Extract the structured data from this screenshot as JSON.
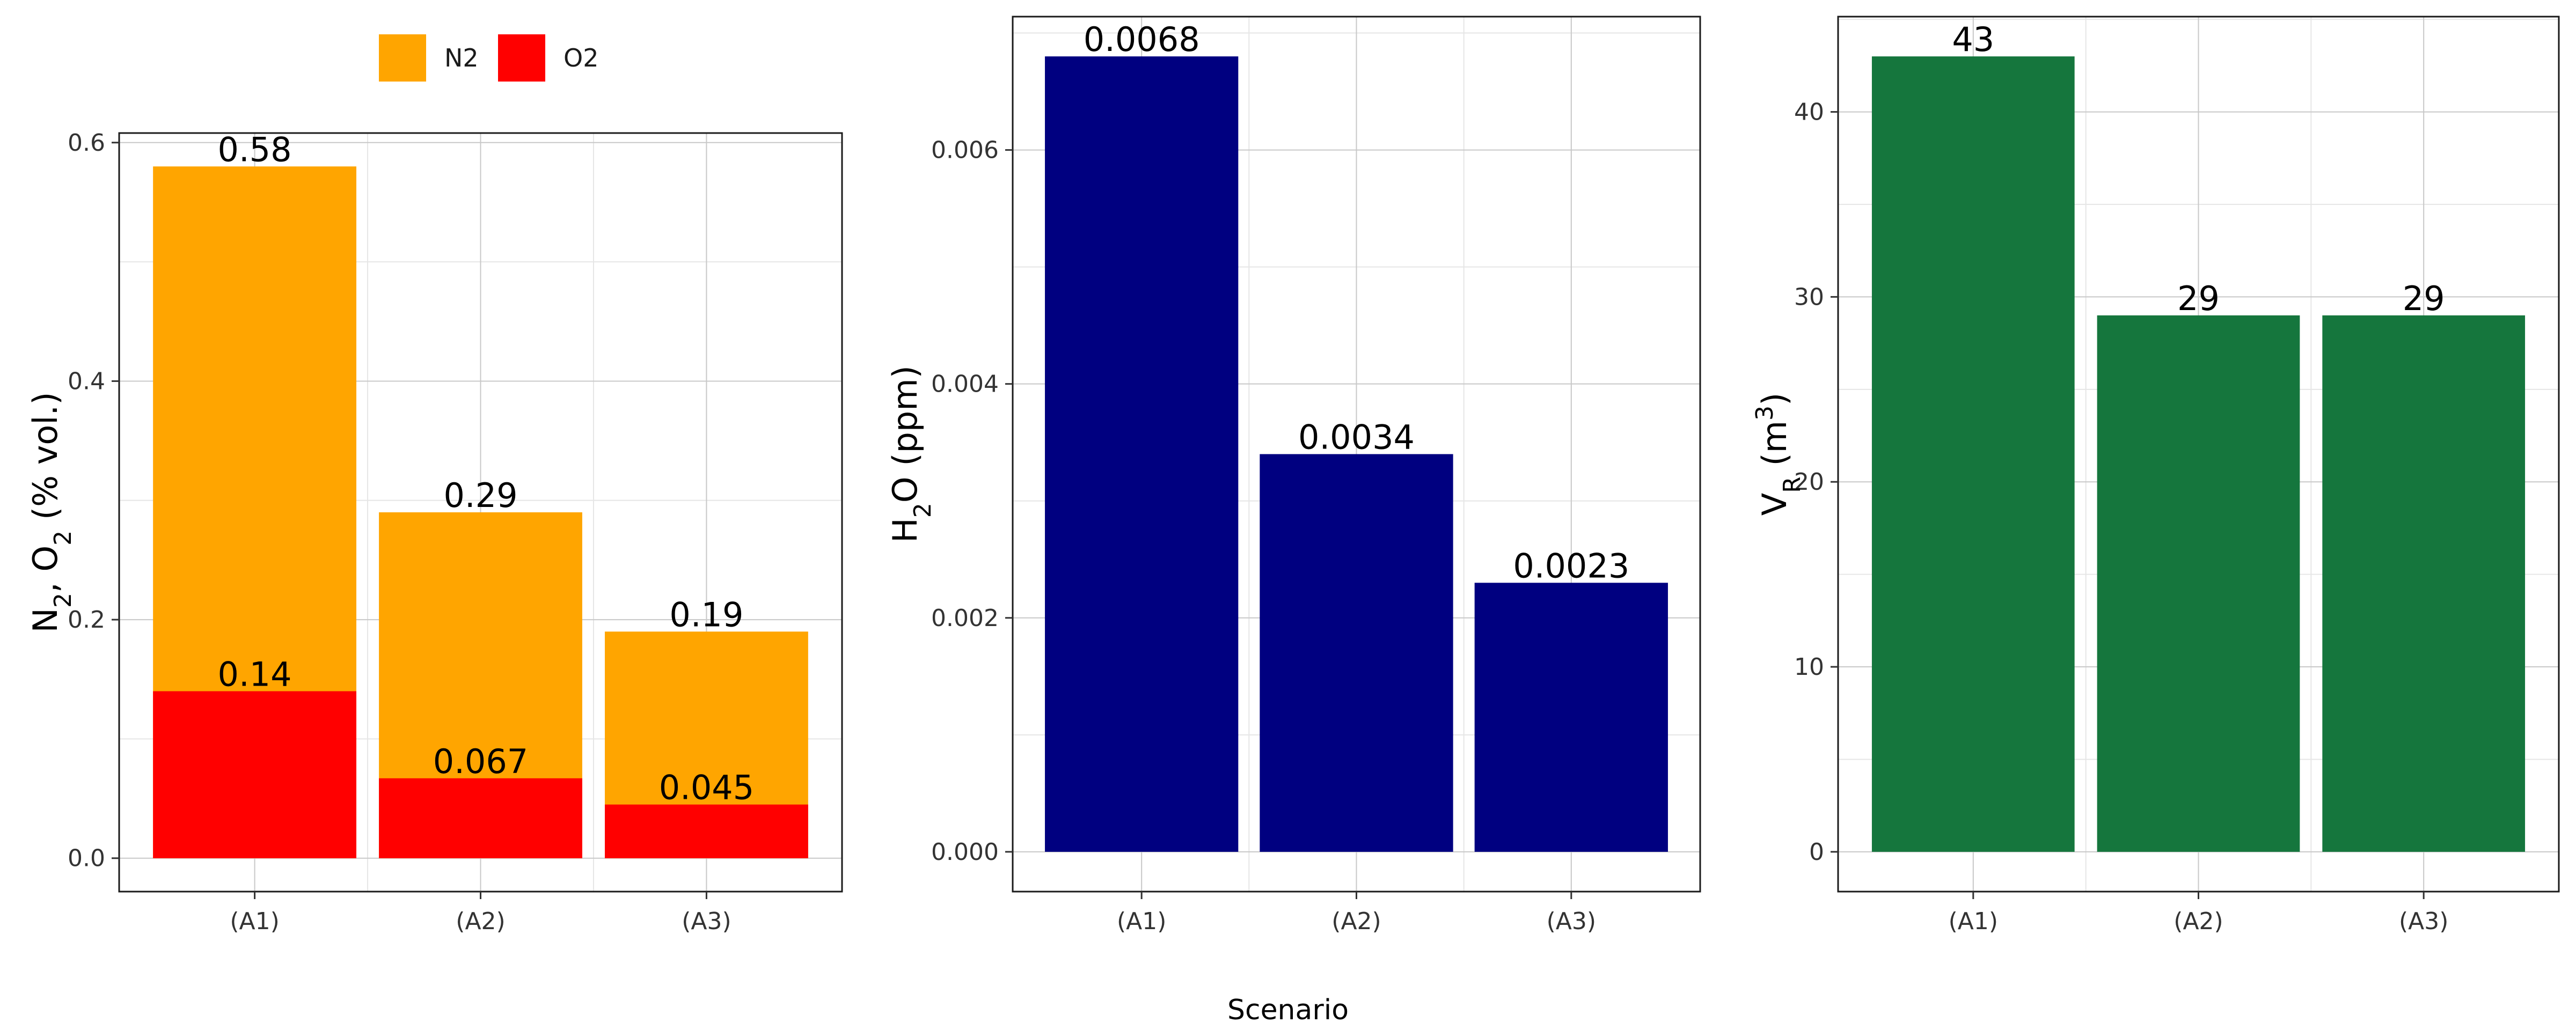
{
  "chart_data": [
    {
      "type": "bar",
      "stacked": false,
      "categories": [
        "(A1)",
        "(A2)",
        "(A3)"
      ],
      "series": [
        {
          "name": "N2",
          "values": [
            0.58,
            0.29,
            0.19
          ],
          "color": "#FFA500",
          "labels": [
            "0.58",
            "0.29",
            "0.19"
          ]
        },
        {
          "name": "O2",
          "values": [
            0.14,
            0.067,
            0.045
          ],
          "color": "#FF0000",
          "labels": [
            "0.14",
            "0.067",
            "0.045"
          ]
        }
      ],
      "ylabel": {
        "main": "N",
        "sub1": "2",
        "mid": ", O",
        "sub2": "2",
        "tail": " (% vol.)"
      },
      "ylim": [
        -0.028,
        0.608
      ],
      "yticks": [
        0.0,
        0.2,
        0.4,
        0.6
      ],
      "ytick_labels": [
        "0.0",
        "0.2",
        "0.4",
        "0.6"
      ],
      "grid": true,
      "legend": "top-center"
    },
    {
      "type": "bar",
      "categories": [
        "(A1)",
        "(A2)",
        "(A3)"
      ],
      "series": [
        {
          "values": [
            0.0068,
            0.0034,
            0.0023
          ],
          "color": "#000080",
          "labels": [
            "0.0068",
            "0.0034",
            "0.0023"
          ]
        }
      ],
      "ylabel": {
        "main": "H",
        "sub1": "2",
        "mid": "O (ppm)",
        "sub2": "",
        "tail": ""
      },
      "ylim": [
        -0.00034,
        0.00714
      ],
      "yticks": [
        0.0,
        0.002,
        0.004,
        0.006
      ],
      "ytick_labels": [
        "0.000",
        "0.002",
        "0.004",
        "0.006"
      ],
      "grid": true
    },
    {
      "type": "bar",
      "categories": [
        "(A1)",
        "(A2)",
        "(A3)"
      ],
      "series": [
        {
          "values": [
            43,
            29,
            29
          ],
          "color": "#15763D",
          "labels": [
            "43",
            "29",
            "29"
          ]
        }
      ],
      "ylabel": {
        "main": "V",
        "sub1": "R",
        "mid": " (m",
        "sup": "3",
        "tail": ")"
      },
      "ylim": [
        -2.15,
        45.15
      ],
      "yticks": [
        0,
        10,
        20,
        30,
        40
      ],
      "ytick_labels": [
        "0",
        "10",
        "20",
        "30",
        "40"
      ],
      "grid": true
    }
  ],
  "xlabel": "Scenario",
  "legend": {
    "items": [
      {
        "label": "N2",
        "color": "#FFA500"
      },
      {
        "label": "O2",
        "color": "#FF0000"
      }
    ]
  }
}
